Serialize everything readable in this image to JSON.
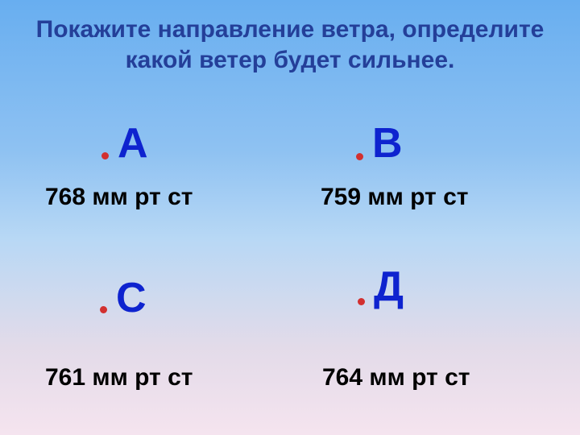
{
  "slide": {
    "title_line1": "Покажите направление ветра,  определите",
    "title_line2": "какой ветер будет сильнее.",
    "title_color": "#243f99",
    "title_fontsize": 30,
    "letter_color": "#0e23cf",
    "letter_fontsize": 52,
    "value_color": "#000000",
    "value_fontsize": 30,
    "dot_color": "#d23030",
    "dot_size": 9,
    "points": {
      "A": {
        "letter": "А",
        "value": "768 мм рт ст"
      },
      "B": {
        "letter": "В",
        "value": "759 мм рт ст"
      },
      "C": {
        "letter": "С",
        "value": "761 мм рт ст"
      },
      "D": {
        "letter": "Д",
        "value": "764 мм рт ст"
      }
    }
  }
}
